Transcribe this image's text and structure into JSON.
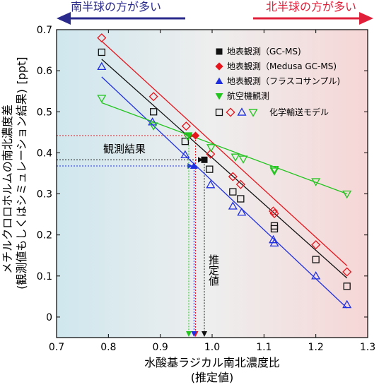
{
  "chart_data": {
    "type": "scatter",
    "xlabel": "水酸基ラジカル南北濃度比",
    "xlabel_sub": "(推定値)",
    "ylabel": "メチルクロロホルムの南北濃度差",
    "ylabel_sub": "(観測値もしくはシミュレーション結果)",
    "yunit": "[ppt]",
    "xlim": [
      0.7,
      1.3
    ],
    "ylim": [
      -0.05,
      0.7
    ],
    "xticks": [
      0.7,
      0.8,
      0.9,
      1.0,
      1.1,
      1.2,
      1.3
    ],
    "yticks": [
      0,
      0.1,
      0.2,
      0.3,
      0.4,
      0.5,
      0.6,
      0.7
    ],
    "header_left": "南半球の方が多い",
    "header_right": "北半球の方が多い",
    "annotation_observed": "観測結果",
    "annotation_estimated": "推定値",
    "model_label": "化学輸送モデル",
    "colors": {
      "black": "#111111",
      "red": "#e8141c",
      "blue": "#1f2fe0",
      "green": "#22c41e",
      "left_arrow": "#2a2a8c",
      "right_arrow": "#e0203a",
      "bg_left": "#cfe7ee",
      "bg_mid": "#eeeeee",
      "bg_right": "#f6d6d6"
    },
    "series": [
      {
        "name": "地表観測（GC-MS)",
        "color": "#111111",
        "marker": "square",
        "observed": {
          "x": 0.985,
          "y": 0.383
        },
        "model": {
          "x": [
            0.787,
            0.887,
            0.948,
            0.995,
            1.04,
            1.055,
            1.12,
            1.12,
            1.2,
            1.26
          ],
          "y": [
            0.645,
            0.5,
            0.428,
            0.36,
            0.305,
            0.288,
            0.222,
            0.215,
            0.14,
            0.075
          ]
        },
        "fit": {
          "x": [
            0.787,
            1.26
          ],
          "y": [
            0.628,
            0.095
          ]
        }
      },
      {
        "name": "地表観測（Medusa GC-MS)",
        "color": "#e8141c",
        "marker": "diamond",
        "observed": {
          "x": 0.968,
          "y": 0.442
        },
        "model": {
          "x": [
            0.787,
            0.887,
            0.95,
            0.997,
            1.04,
            1.055,
            1.118,
            1.12,
            1.2,
            1.26
          ],
          "y": [
            0.68,
            0.537,
            0.465,
            0.397,
            0.342,
            0.323,
            0.258,
            0.252,
            0.176,
            0.11
          ]
        },
        "fit": {
          "x": [
            0.787,
            1.26
          ],
          "y": [
            0.672,
            0.125
          ]
        }
      },
      {
        "name": "地表観測（フラスコサンプル)",
        "color": "#1f2fe0",
        "marker": "triangle-up",
        "observed": {
          "x": 0.965,
          "y": 0.368
        },
        "model": {
          "x": [
            0.787,
            0.885,
            0.948,
            0.997,
            1.04,
            1.057,
            1.118,
            1.12,
            1.2,
            1.26
          ],
          "y": [
            0.61,
            0.475,
            0.395,
            0.322,
            0.27,
            0.255,
            0.188,
            0.18,
            0.1,
            0.03
          ]
        },
        "fit": {
          "x": [
            0.787,
            1.26
          ],
          "y": [
            0.585,
            0.022
          ]
        }
      },
      {
        "name": "航空機観測",
        "color": "#22c41e",
        "marker": "triangle-down",
        "observed": {
          "x": 0.955,
          "y": 0.443
        },
        "model": {
          "x": [
            0.787,
            0.887,
            0.953,
            0.998,
            1.045,
            1.06,
            1.12,
            1.12,
            1.2,
            1.26
          ],
          "y": [
            0.533,
            0.466,
            0.44,
            0.413,
            0.39,
            0.385,
            0.36,
            0.356,
            0.33,
            0.3
          ]
        },
        "fit": {
          "x": [
            0.787,
            1.26
          ],
          "y": [
            0.522,
            0.3
          ]
        }
      }
    ],
    "guides": [
      {
        "color": "#e8141c",
        "from_x": 0.7,
        "obs_index": 1
      },
      {
        "color": "#111111",
        "from_x": 0.7,
        "obs_index": 0
      },
      {
        "color": "#1f2fe0",
        "from_x": 0.7,
        "obs_index": 2
      },
      {
        "color": "#22c41e",
        "from_x": null,
        "obs_index": 3
      }
    ]
  }
}
